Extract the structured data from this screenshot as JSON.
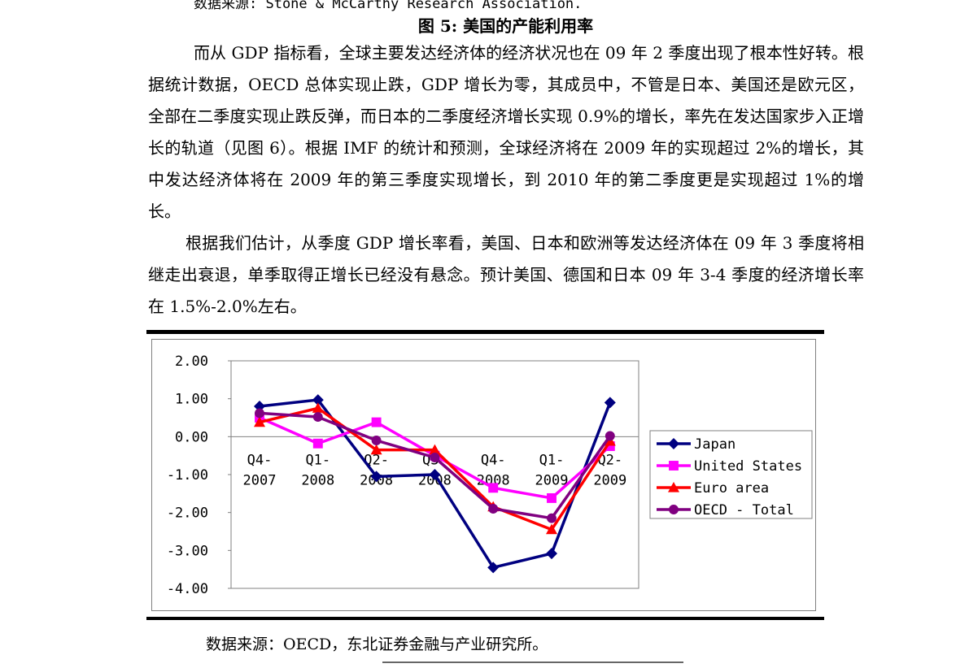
{
  "document": {
    "top_source": "数据来源: Stone & McCarthy Research Association.",
    "figure_title": "图 5: 美国的产能利用率",
    "paragraphs": [
      "而从 GDP 指标看，全球主要发达经济体的经济状况也在 09 年 2 季度出现了根本性好转。根据统计数据，OECD 总体实现止跌，GDP 增长为零，其成员中，不管是日本、美国还是欧元区，全部在二季度实现止跌反弹，而日本的二季度经济增长实现 0.9%的增长，率先在发达国家步入正增长的轨道（见图 6）。根据 IMF 的统计和预测，全球经济将在 2009 年的实现超过 2%的增长，其中发达经济体将在 2009 年的第三季度实现增长，到 2010 年的第二季度更是实现超过 1%的增长。",
      "根据我们估计，从季度 GDP 增长率看，美国、日本和欧洲等发达经济体在 09 年 3 季度将相继走出衰退，单季取得正增长已经没有悬念。预计美国、德国和日本 09 年 3-4 季度的经济增长率在 1.5%-2.0%左右。"
    ],
    "chart_source": "数据来源：OECD，东北证券金融与产业研究所。"
  },
  "chart_data": {
    "type": "line",
    "categories": [
      [
        "Q4-",
        "2007"
      ],
      [
        "Q1-",
        "2008"
      ],
      [
        "Q2-",
        "2008"
      ],
      [
        "Q3-",
        "2008"
      ],
      [
        "Q4-",
        "2008"
      ],
      [
        "Q1-",
        "2009"
      ],
      [
        "Q2-",
        "2009"
      ]
    ],
    "yticks": [
      "2.00",
      "1.00",
      "0.00",
      "-1.00",
      "-2.00",
      "-3.00",
      "-4.00"
    ],
    "ylim": [
      -4,
      2
    ],
    "grid": false,
    "legend_position": "right",
    "series": [
      {
        "name": "Japan",
        "color": "#000080",
        "marker": "diamond",
        "values": [
          0.8,
          0.97,
          -1.05,
          -1.0,
          -3.45,
          -3.08,
          0.9
        ]
      },
      {
        "name": "United States",
        "color": "#ff00ff",
        "marker": "square",
        "values": [
          0.5,
          -0.18,
          0.38,
          -0.5,
          -1.35,
          -1.62,
          -0.25
        ]
      },
      {
        "name": "Euro area",
        "color": "#ff0000",
        "marker": "triangle",
        "values": [
          0.38,
          0.75,
          -0.35,
          -0.35,
          -1.85,
          -2.45,
          -0.12
        ]
      },
      {
        "name": "OECD - Total",
        "color": "#800080",
        "marker": "circle",
        "values": [
          0.62,
          0.52,
          -0.1,
          -0.55,
          -1.9,
          -2.15,
          0.02
        ]
      }
    ]
  }
}
